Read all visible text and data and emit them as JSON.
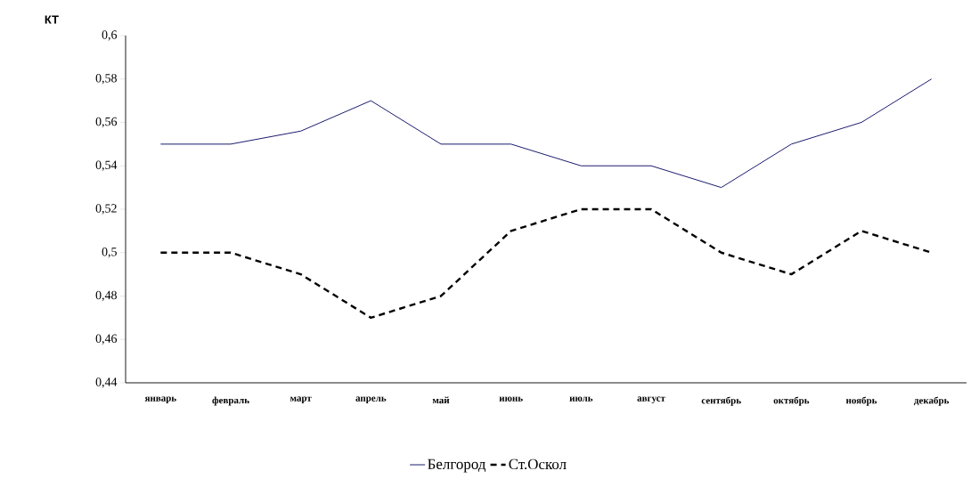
{
  "chart_data": {
    "type": "line",
    "ylabel": "КТ",
    "categories": [
      "январь",
      "февраль",
      "март",
      "апрель",
      "май",
      "июнь",
      "июль",
      "август",
      "сентябрь",
      "октябрь",
      "ноябрь",
      "декабрь"
    ],
    "series": [
      {
        "name": "Белгород",
        "color": "#1a1a6e",
        "line_style": "solid",
        "values": [
          0.55,
          0.55,
          0.556,
          0.57,
          0.55,
          0.55,
          0.54,
          0.54,
          0.53,
          0.55,
          0.56,
          0.58
        ]
      },
      {
        "name": "Ст.Оскол",
        "color": "#000000",
        "line_style": "dashed",
        "values": [
          0.5,
          0.5,
          0.49,
          0.47,
          0.48,
          0.51,
          0.52,
          0.52,
          0.5,
          0.49,
          0.51,
          0.5
        ]
      }
    ],
    "ylim": [
      0.44,
      0.6
    ],
    "yticks": [
      {
        "value": 0.44,
        "label": "0,44"
      },
      {
        "value": 0.46,
        "label": "0,46"
      },
      {
        "value": 0.48,
        "label": "0,48"
      },
      {
        "value": 0.5,
        "label": "0,5"
      },
      {
        "value": 0.52,
        "label": "0,52"
      },
      {
        "value": 0.54,
        "label": "0,54"
      },
      {
        "value": 0.56,
        "label": "0,56"
      },
      {
        "value": 0.58,
        "label": "0,58"
      },
      {
        "value": 0.6,
        "label": "0,6"
      }
    ],
    "grid": false,
    "legend": "bottom",
    "marker": "none"
  }
}
